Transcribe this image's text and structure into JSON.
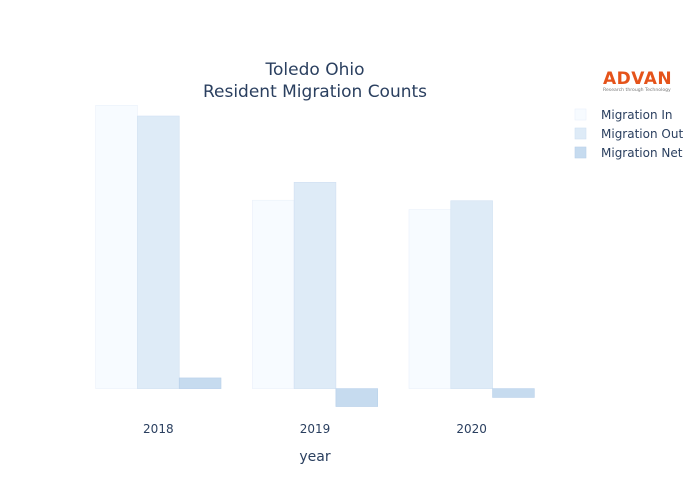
{
  "brand": {
    "name": "ADVAN",
    "tagline": "Research through Technology",
    "color": "#e5531a"
  },
  "chart_data": {
    "type": "bar",
    "title_lines": [
      "Toledo Ohio",
      "Resident Migration Counts"
    ],
    "xlabel": "year",
    "ylabel": "",
    "categories": [
      "2018",
      "2019",
      "2020"
    ],
    "series": [
      {
        "name": "Migration In",
        "values": [
          1060,
          705,
          670
        ],
        "color": "#f7fbff",
        "stroke": "#eaf1fa"
      },
      {
        "name": "Migration Out",
        "values": [
          1020,
          772,
          703
        ],
        "color": "#deebf7",
        "stroke": "#d0e0f2"
      },
      {
        "name": "Migration Net",
        "values": [
          40,
          -67,
          -33
        ],
        "color": "#c6dbef",
        "stroke": "#b8d0ea"
      }
    ],
    "ylim": [
      -80,
      1080
    ],
    "grid": false,
    "legend_position": "top-right"
  }
}
